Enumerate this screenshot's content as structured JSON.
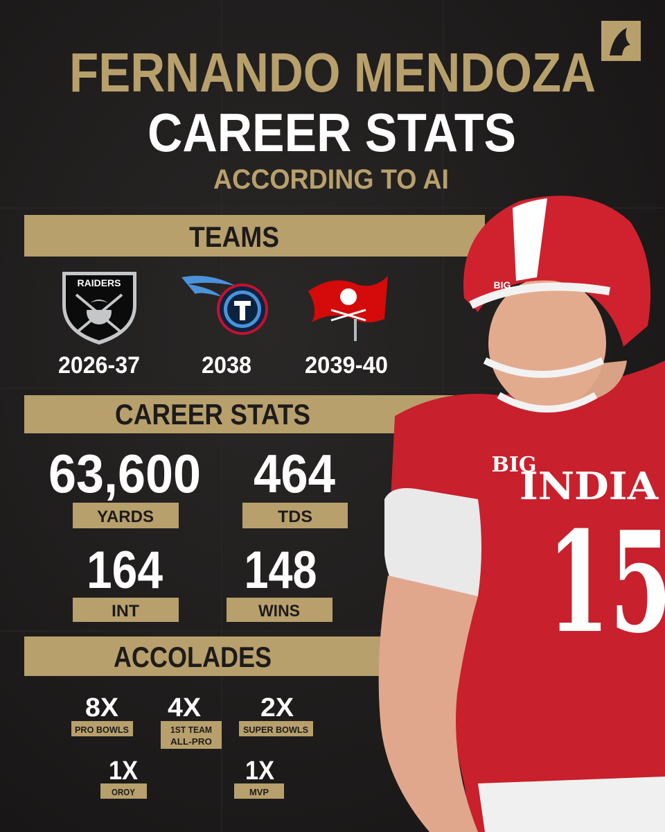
{
  "header": {
    "name": "FERNANDO MENDOZA",
    "title": "CAREER STATS",
    "subtitle": "ACCORDING TO AI"
  },
  "teams": {
    "heading": "TEAMS",
    "items": [
      {
        "years": "2026-37",
        "logo_text": "RAIDERS"
      },
      {
        "years": "2038"
      },
      {
        "years": "2039-40"
      }
    ]
  },
  "career_stats": {
    "heading": "CAREER STATS",
    "items": [
      {
        "value": "63,600",
        "label": "YARDS"
      },
      {
        "value": "464",
        "label": "TDS"
      },
      {
        "value": "164",
        "label": "INT"
      },
      {
        "value": "148",
        "label": "WINS"
      }
    ]
  },
  "accolades": {
    "heading": "ACCOLADES",
    "items": [
      {
        "value": "8X",
        "label": "PRO BOWLS"
      },
      {
        "value": "4X",
        "label": [
          "1ST TEAM",
          "ALL-PRO"
        ]
      },
      {
        "value": "2X",
        "label": "SUPER BOWLS"
      },
      {
        "value": "1X",
        "label": "OROY"
      },
      {
        "value": "1X",
        "label": "MVP"
      }
    ]
  },
  "photo": {
    "helmet_logo": "BIG",
    "chest_logo": "BIG",
    "jersey_text": "INDIA",
    "number": "15"
  }
}
